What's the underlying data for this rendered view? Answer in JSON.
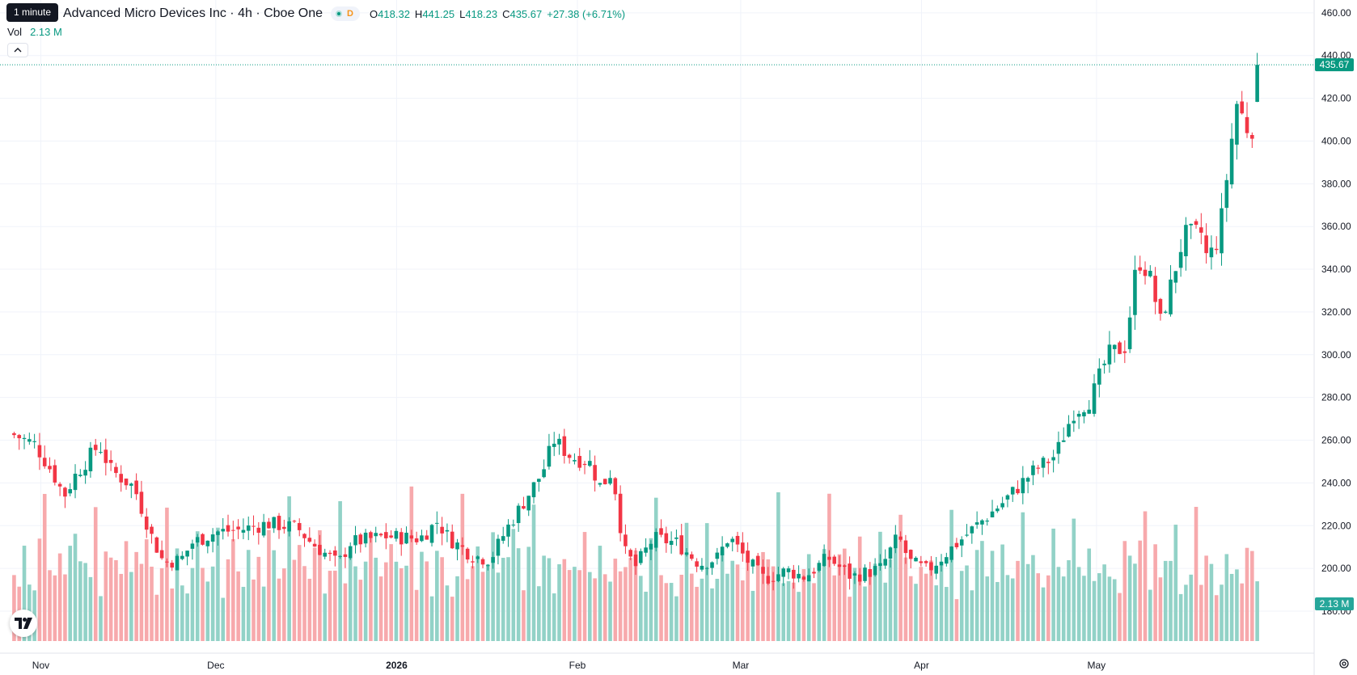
{
  "header": {
    "tooltip": "1 minute",
    "title": "Advanced Micro Devices Inc · 4h · Cboe One",
    "timeframe_badge": "D",
    "ohlc": {
      "o_label": "O",
      "o_value": "418.32",
      "h_label": "H",
      "h_value": "441.25",
      "l_label": "L",
      "l_value": "418.23",
      "c_label": "C",
      "c_value": "435.67",
      "change": "+27.38 (+6.71%)"
    },
    "volume": {
      "label": "Vol",
      "value": "2.13 M"
    }
  },
  "icons": {
    "collapse": "chevron-up-icon",
    "logo": "tradingview-logo",
    "settings": "gear-icon"
  },
  "colors": {
    "up": "#089981",
    "down": "#f23645",
    "up_volume": "#92d2c7",
    "down_volume": "#f7a9ac",
    "grid": "#f0f3fa",
    "axis_text": "#131722"
  },
  "chart_data": {
    "type": "candlestick",
    "title": "Advanced Micro Devices Inc · 4h · Cboe One",
    "interval": "4h",
    "x_tick_labels": [
      "Nov",
      "Dec",
      "2026",
      "Feb",
      "Mar",
      "Apr",
      "May"
    ],
    "y_tick_labels": [
      "460.00",
      "440.00",
      "420.00",
      "400.00",
      "380.00",
      "360.00",
      "340.00",
      "320.00",
      "300.00",
      "280.00",
      "260.00",
      "240.00",
      "220.00",
      "200.00",
      "180.00"
    ],
    "y_range": [
      166,
      466
    ],
    "last_price_label": "435.67",
    "last_price": 435.67,
    "volume_label": "2.13 M",
    "volume_axis_label": "2.13 M",
    "grid": true,
    "anchors": [
      [
        "2025-10-27",
        263
      ],
      [
        "2025-10-31",
        258
      ],
      [
        "2025-11-03",
        245
      ],
      [
        "2025-11-05",
        234
      ],
      [
        "2025-11-07",
        244
      ],
      [
        "2025-11-11",
        258
      ],
      [
        "2025-11-13",
        246
      ],
      [
        "2025-11-17",
        238
      ],
      [
        "2025-11-20",
        215
      ],
      [
        "2025-11-22",
        203
      ],
      [
        "2025-11-25",
        204
      ],
      [
        "2025-11-27",
        212
      ],
      [
        "2025-12-01",
        217
      ],
      [
        "2025-12-05",
        218
      ],
      [
        "2025-12-10",
        221
      ],
      [
        "2025-12-15",
        219
      ],
      [
        "2025-12-17",
        213
      ],
      [
        "2025-12-22",
        202
      ],
      [
        "2025-12-24",
        212
      ],
      [
        "2025-12-30",
        215
      ],
      [
        "2026-01-05",
        214
      ],
      [
        "2026-01-08",
        222
      ],
      [
        "2026-01-10",
        214
      ],
      [
        "2026-01-14",
        206
      ],
      [
        "2026-01-17",
        204
      ],
      [
        "2026-01-20",
        219
      ],
      [
        "2026-01-23",
        232
      ],
      [
        "2026-01-26",
        245
      ],
      [
        "2026-01-28",
        260
      ],
      [
        "2026-01-31",
        252
      ],
      [
        "2026-02-03",
        250
      ],
      [
        "2026-02-05",
        238
      ],
      [
        "2026-02-07",
        246
      ],
      [
        "2026-02-09",
        208
      ],
      [
        "2026-02-11",
        201
      ],
      [
        "2026-02-14",
        214
      ],
      [
        "2026-02-18",
        212
      ],
      [
        "2026-02-22",
        202
      ],
      [
        "2026-02-25",
        205
      ],
      [
        "2026-02-27",
        215
      ],
      [
        "2026-03-02",
        204
      ],
      [
        "2026-03-05",
        195
      ],
      [
        "2026-03-09",
        199
      ],
      [
        "2026-03-12",
        196
      ],
      [
        "2026-03-16",
        205
      ],
      [
        "2026-03-20",
        196
      ],
      [
        "2026-03-25",
        200
      ],
      [
        "2026-03-28",
        215
      ],
      [
        "2026-03-30",
        203
      ],
      [
        "2026-04-02",
        199
      ],
      [
        "2026-04-06",
        209
      ],
      [
        "2026-04-10",
        219
      ],
      [
        "2026-04-15",
        231
      ],
      [
        "2026-04-20",
        245
      ],
      [
        "2026-04-24",
        253
      ],
      [
        "2026-04-27",
        273
      ],
      [
        "2026-04-30",
        279
      ],
      [
        "2026-05-03",
        300
      ],
      [
        "2026-05-06",
        304
      ],
      [
        "2026-05-08",
        345
      ],
      [
        "2026-05-10",
        338
      ],
      [
        "2026-05-12",
        315
      ],
      [
        "2026-05-14",
        335
      ],
      [
        "2026-05-16",
        356
      ],
      [
        "2026-05-19",
        357
      ],
      [
        "2026-05-20",
        344
      ],
      [
        "2026-05-22",
        355
      ],
      [
        "2026-05-25",
        418
      ],
      [
        "2026-05-27",
        405
      ],
      [
        "2026-05-28",
        407
      ],
      [
        "2026-05-29",
        435.67
      ]
    ],
    "volume_range": [
      0,
      100
    ],
    "volume_profile": [
      34,
      26,
      46,
      30,
      24,
      38,
      70,
      28,
      32,
      28,
      24,
      36,
      44,
      26,
      22,
      30,
      60,
      20,
      28,
      36,
      24,
      30,
      40,
      26
    ]
  }
}
